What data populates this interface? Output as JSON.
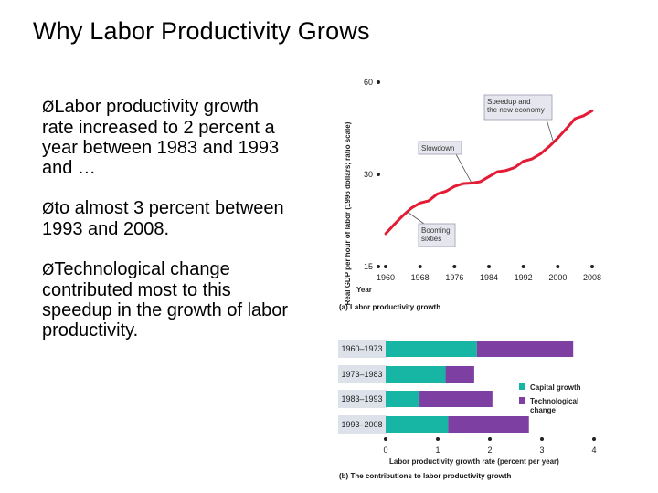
{
  "slide": {
    "title": "Why Labor Productivity Grows",
    "bullets": [
      {
        "marker": "Ø",
        "text": "Labor productivity growth rate increased to 2 percent a year between 1983 and 1993 and …"
      },
      {
        "marker": "Ø",
        "text": "to almost 3 percent between 1993 and 2008."
      },
      {
        "marker": "Ø",
        "text": "Technological change contributed most to this speedup in the growth of labor productivity."
      }
    ]
  },
  "colors": {
    "line": "#e31b34",
    "capital": "#17b5a4",
    "technological": "#7e3fa2",
    "band": "#dde2ea",
    "annotation_bg": "#e6e7ee",
    "annotation_border": "#9b9bb2"
  },
  "chart_data": [
    {
      "type": "line",
      "title": "(a) Labor productivity growth",
      "xlabel": "Year",
      "ylabel": "Real GDP per hour of labor (1996 dollars; ratio scale)",
      "yscale": "log",
      "ylim": [
        15,
        60
      ],
      "xlim": [
        1960,
        2008
      ],
      "xticks": [
        "1960",
        "1968",
        "1976",
        "1984",
        "1992",
        "2000",
        "2008"
      ],
      "yticks": [
        "15",
        "30",
        "60"
      ],
      "x": [
        1960,
        1962,
        1964,
        1966,
        1968,
        1970,
        1972,
        1974,
        1976,
        1978,
        1980,
        1982,
        1984,
        1986,
        1988,
        1990,
        1992,
        1994,
        1996,
        1998,
        2000,
        2002,
        2004,
        2006,
        2008
      ],
      "y": [
        19.2,
        20.6,
        22.0,
        23.3,
        24.2,
        24.6,
        25.9,
        26.4,
        27.4,
        28.0,
        28.1,
        28.4,
        29.5,
        30.6,
        30.9,
        31.6,
        33.1,
        33.7,
        35.0,
        37.0,
        39.4,
        42.3,
        45.6,
        46.6,
        48.4
      ],
      "annotations": [
        {
          "text": "Speedup and the new economy",
          "lines": [
            "Speedup and",
            "the new economy"
          ],
          "x": 1999
        },
        {
          "text": "Slowdown",
          "lines": [
            "Slowdown"
          ],
          "x": 1980
        },
        {
          "text": "Booming sixties",
          "lines": [
            "Booming",
            "sixties"
          ],
          "x": 1965
        }
      ]
    },
    {
      "type": "bar",
      "orientation": "horizontal",
      "stacked": true,
      "title": "(b) The contributions to labor productivity growth",
      "xlabel": "Labor productivity growth rate (percent per year)",
      "xlim": [
        0,
        4
      ],
      "xticks": [
        "0",
        "1",
        "2",
        "3",
        "4"
      ],
      "categories": [
        "1960–1973",
        "1973–1983",
        "1983–1993",
        "1993–2008"
      ],
      "series": [
        {
          "name": "Capital growth",
          "values": [
            1.75,
            1.15,
            0.65,
            1.2
          ]
        },
        {
          "name": "Technological change",
          "values": [
            1.85,
            0.55,
            1.4,
            1.55
          ]
        }
      ],
      "legend_labels": [
        "Capital growth",
        "Technological",
        "change"
      ]
    }
  ]
}
